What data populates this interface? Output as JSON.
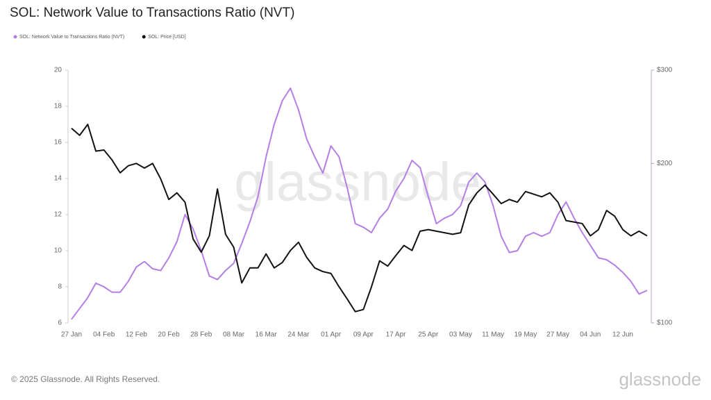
{
  "chart_data": {
    "type": "line",
    "title": "SOL: Network Value to Transactions Ratio (NVT)",
    "categories": [
      "27 Jan",
      null,
      null,
      null,
      "04 Feb",
      null,
      null,
      null,
      "12 Feb",
      null,
      null,
      null,
      "20 Feb",
      null,
      null,
      null,
      "28 Feb",
      null,
      null,
      null,
      "08 Mar",
      null,
      null,
      null,
      "16 Mar",
      null,
      null,
      null,
      "24 Mar",
      null,
      null,
      null,
      "01 Apr",
      null,
      null,
      null,
      "09 Apr",
      null,
      null,
      null,
      "17 Apr",
      null,
      null,
      null,
      "25 Apr",
      null,
      null,
      null,
      "03 May",
      null,
      null,
      null,
      "11 May",
      null,
      null,
      null,
      "19 May",
      null,
      null,
      null,
      "27 May",
      null,
      null,
      null,
      "04 Jun",
      null,
      null,
      null,
      "12 Jun",
      null,
      null,
      null
    ],
    "series": [
      {
        "name": "SOL: Network Value to Transactions Ratio (NVT)",
        "color": "#b47ee5",
        "values": [
          6.2,
          6.8,
          7.4,
          8.2,
          8.0,
          7.7,
          7.7,
          8.3,
          9.1,
          9.4,
          9.0,
          8.9,
          9.6,
          10.5,
          12.0,
          11.2,
          10.0,
          8.6,
          8.4,
          8.9,
          9.3,
          10.4,
          11.6,
          13.0,
          15.2,
          17.0,
          18.3,
          19.0,
          17.8,
          16.2,
          15.2,
          14.3,
          15.8,
          15.2,
          13.5,
          11.5,
          11.3,
          11.0,
          11.8,
          12.3,
          13.3,
          14.0,
          15.0,
          14.6,
          13.0,
          11.5,
          11.8,
          12.0,
          12.5,
          13.8,
          14.3,
          13.8,
          12.5,
          10.8,
          9.9,
          10.0,
          10.8,
          11.0,
          10.8,
          11.0,
          12.0,
          12.7,
          11.8,
          11.0,
          10.3,
          9.6,
          9.5,
          9.2,
          8.8,
          8.3,
          7.6,
          7.8
        ]
      },
      {
        "name": "SOL: Price [USD]",
        "color": "#111111",
        "axis": "y2",
        "values": [
          233,
          226,
          237,
          211,
          212,
          203,
          192,
          198,
          200,
          196,
          200,
          187,
          171,
          176,
          169,
          144,
          136,
          146,
          179,
          147,
          139,
          119,
          127,
          127,
          135,
          127,
          130,
          137,
          142,
          133,
          127,
          125,
          124,
          117,
          111,
          105,
          106,
          117,
          131,
          128,
          134,
          140,
          137,
          149,
          150,
          149,
          148,
          147,
          148,
          167,
          176,
          182,
          175,
          168,
          171,
          169,
          177,
          175,
          173,
          176,
          169,
          156,
          155,
          154,
          146,
          150,
          163,
          159,
          150,
          146,
          149,
          146
        ]
      }
    ],
    "ylim": [
      6,
      20
    ],
    "yticks": [
      6,
      8,
      10,
      12,
      14,
      16,
      18,
      20
    ],
    "y2lim": [
      100,
      300
    ],
    "y2log": true,
    "y2ticks": [
      {
        "value": 100,
        "label": "$100"
      },
      {
        "value": 200,
        "label": "$200"
      },
      {
        "value": 300,
        "label": "$300"
      }
    ],
    "grid": false,
    "watermark": "glassnode",
    "footer": "© 2025 Glassnode. All Rights Reserved.",
    "logo": "glassnode"
  }
}
